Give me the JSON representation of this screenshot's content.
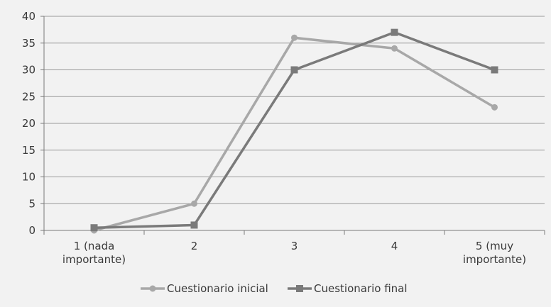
{
  "chart_data": {
    "type": "line",
    "title": "",
    "xlabel": "",
    "ylabel": "",
    "categories": [
      [
        "1 (nada",
        "importante)"
      ],
      [
        "2"
      ],
      [
        "3"
      ],
      [
        "4"
      ],
      [
        "5 (muy",
        "importante)"
      ]
    ],
    "ylim": [
      0,
      40
    ],
    "yticks": [
      0,
      5,
      10,
      15,
      20,
      25,
      30,
      35,
      40
    ],
    "grid": true,
    "legend_position": "bottom",
    "series": [
      {
        "name": "Cuestionario inicial",
        "values": [
          0,
          5,
          36,
          34,
          23
        ],
        "color": "#a8a8a8",
        "marker": "circle"
      },
      {
        "name": "Cuestionario final",
        "values": [
          0.5,
          1,
          30,
          37,
          30
        ],
        "color": "#7a7a7a",
        "marker": "square"
      }
    ]
  }
}
